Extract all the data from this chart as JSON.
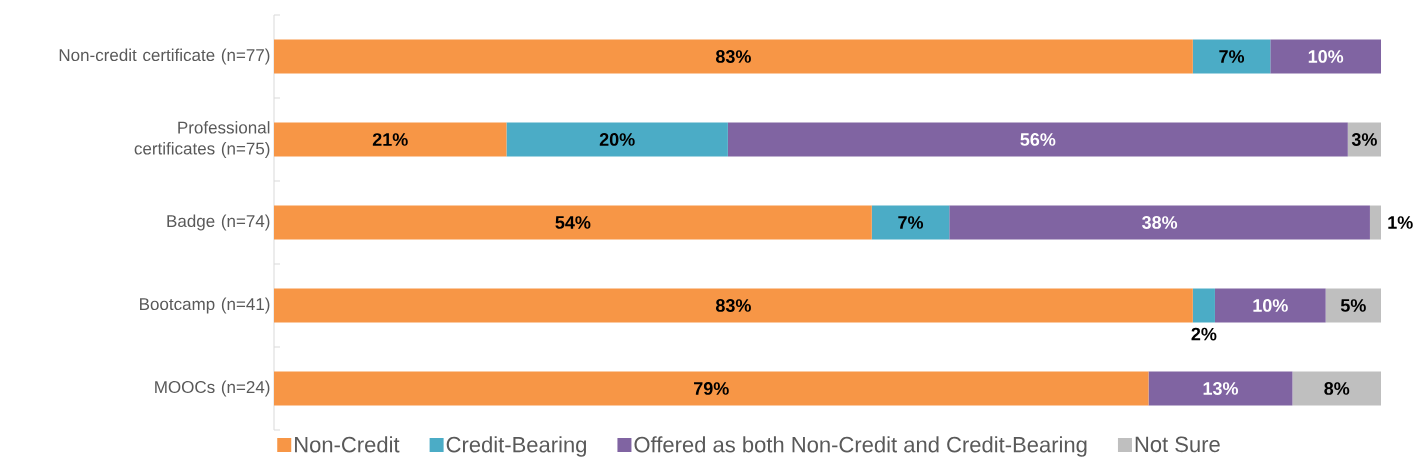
{
  "chart_data": {
    "type": "bar",
    "orientation": "horizontal",
    "stacked": true,
    "legend": "bottom",
    "grid": false,
    "xlim": [
      0,
      100
    ],
    "tick_labels": "y",
    "categories": [
      "Non-credit certificate (n=77)",
      "Professional certificates (n=75)",
      "Badge (n=74)",
      "Bootcamp (n=41)",
      "MOOCs (n=24)"
    ],
    "series": [
      {
        "name": "Non-Credit",
        "color": "#f79646",
        "values": [
          83,
          21,
          54,
          83,
          79
        ],
        "value_labels": [
          "83%",
          "21%",
          "54%",
          "83%",
          "79%"
        ]
      },
      {
        "name": "Credit-Bearing",
        "color": "#4bacc6",
        "values": [
          7,
          20,
          7,
          2,
          null
        ],
        "value_labels": [
          "7%",
          "20%",
          "7%",
          "2%",
          null
        ]
      },
      {
        "name": "Offered as both Non-Credit and Credit-Bearing",
        "color": "#8064a2",
        "values": [
          10,
          56,
          38,
          10,
          13
        ],
        "value_labels": [
          "10%",
          "56%",
          "38%",
          "10%",
          "13%"
        ]
      },
      {
        "name": "Not Sure",
        "color": "#bfbfbf",
        "values": [
          null,
          3,
          1,
          5,
          8
        ],
        "value_labels": [
          null,
          "3%",
          "1%",
          "5%",
          "8%"
        ]
      }
    ]
  }
}
